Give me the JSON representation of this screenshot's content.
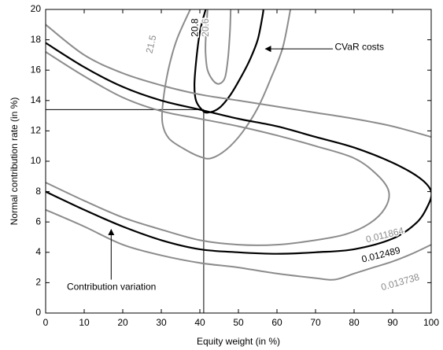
{
  "chart_data": {
    "type": "line",
    "title": "",
    "xlabel": "Equity weight (in %)",
    "ylabel": "Normal contribution rate (in %)",
    "xlim": [
      0,
      100
    ],
    "ylim": [
      0,
      20
    ],
    "xticks": [
      "0",
      "10",
      "20",
      "30",
      "40",
      "50",
      "60",
      "70",
      "80",
      "90",
      "100"
    ],
    "yticks": [
      "0",
      "2",
      "4",
      "6",
      "8",
      "10",
      "12",
      "14",
      "16",
      "18",
      "20"
    ],
    "grid": false,
    "colors": {
      "dark": "#000000",
      "gray": "#8c8c8c"
    },
    "series": [
      {
        "label": "20.8",
        "color": "dark",
        "segments": [
          [
            [
              41.5,
              20
            ],
            [
              40,
              18.5
            ],
            [
              39,
              16.5
            ],
            [
              38.6,
              15
            ],
            [
              39,
              14
            ],
            [
              40.5,
              13.4
            ],
            [
              42,
              13.2
            ],
            [
              45,
              13.5
            ],
            [
              48,
              14.4
            ],
            [
              51,
              15.7
            ],
            [
              53,
              16.7
            ],
            [
              55,
              18
            ],
            [
              56.2,
              19.5
            ],
            [
              56.5,
              20
            ]
          ]
        ]
      },
      {
        "label": "20.6",
        "color": "gray",
        "segments": [
          [
            [
              42,
              20
            ],
            [
              41.5,
              18
            ],
            [
              41.5,
              17
            ],
            [
              42,
              16
            ],
            [
              43.5,
              15.3
            ],
            [
              45,
              15.1
            ],
            [
              46.5,
              15.5
            ],
            [
              47.3,
              16.8
            ],
            [
              47.8,
              18.5
            ],
            [
              48,
              20
            ]
          ]
        ]
      },
      {
        "label": "21.5",
        "color": "gray",
        "segments": [
          [
            [
              37.5,
              20
            ],
            [
              34,
              18
            ],
            [
              31.8,
              16
            ],
            [
              30.5,
              14
            ],
            [
              30.3,
              12.5
            ],
            [
              32,
              11.5
            ],
            [
              36,
              10.8
            ],
            [
              40,
              10.3
            ],
            [
              43,
              10.2
            ],
            [
              47,
              10.8
            ],
            [
              51,
              11.9
            ],
            [
              55,
              13.5
            ],
            [
              58.5,
              15.5
            ],
            [
              61.5,
              17.5
            ],
            [
              63.5,
              20
            ]
          ]
        ]
      },
      {
        "label": "0.012489",
        "color": "dark",
        "segments": [
          [
            [
              0,
              17.8
            ],
            [
              10,
              16.2
            ],
            [
              20,
              14.9
            ],
            [
              30,
              14
            ],
            [
              40,
              13.4
            ],
            [
              50,
              12.8
            ],
            [
              60,
              12.3
            ],
            [
              70,
              11.6
            ],
            [
              80,
              10.9
            ],
            [
              90,
              9.9
            ],
            [
              97,
              8.9
            ],
            [
              100,
              8
            ],
            [
              99,
              7
            ],
            [
              96,
              5.9
            ],
            [
              90,
              4.9
            ],
            [
              80,
              4.2
            ],
            [
              70,
              4
            ],
            [
              60,
              3.9
            ],
            [
              50,
              4
            ],
            [
              40,
              4.2
            ],
            [
              30,
              4.8
            ],
            [
              20,
              5.7
            ],
            [
              10,
              6.8
            ],
            [
              0,
              8
            ]
          ]
        ]
      },
      {
        "label": "0.011864",
        "color": "gray",
        "segments": [
          [
            [
              0,
              17.2
            ],
            [
              10,
              15.6
            ],
            [
              20,
              14.2
            ],
            [
              30,
              13.3
            ],
            [
              40,
              12.8
            ],
            [
              50,
              12.3
            ],
            [
              60,
              11.7
            ],
            [
              70,
              11
            ],
            [
              80,
              10.2
            ],
            [
              86,
              9.1
            ],
            [
              89,
              8
            ],
            [
              88,
              6.9
            ],
            [
              84,
              5.9
            ],
            [
              78,
              5.2
            ],
            [
              70,
              4.8
            ],
            [
              60,
              4.5
            ],
            [
              50,
              4.5
            ],
            [
              40,
              4.8
            ],
            [
              30,
              5.5
            ],
            [
              20,
              6.3
            ],
            [
              10,
              7.4
            ],
            [
              0,
              8.6
            ]
          ]
        ]
      },
      {
        "label": "0.013738",
        "color": "gray",
        "segments": [
          [
            [
              0,
              19
            ],
            [
              10,
              17
            ],
            [
              20,
              15.8
            ],
            [
              30,
              15
            ],
            [
              40,
              14.4
            ],
            [
              50,
              14
            ],
            [
              60,
              13.6
            ],
            [
              70,
              13.2
            ],
            [
              80,
              12.8
            ],
            [
              90,
              12.3
            ],
            [
              100,
              11.6
            ]
          ],
          [
            [
              0,
              6.8
            ],
            [
              10,
              5.7
            ],
            [
              20,
              4.5
            ],
            [
              30,
              3.8
            ],
            [
              40,
              3.3
            ],
            [
              50,
              3
            ],
            [
              60,
              2.6
            ],
            [
              70,
              2.3
            ],
            [
              75,
              2.2
            ],
            [
              80,
              2.6
            ],
            [
              85,
              3
            ],
            [
              90,
              3.4
            ],
            [
              95,
              3.9
            ],
            [
              100,
              4.5
            ]
          ]
        ]
      }
    ],
    "contour_labels": [
      {
        "text": "20.8",
        "x": 38.8,
        "y": 18.8,
        "rotate": -90,
        "color": "dark"
      },
      {
        "text": "20.6",
        "x": 41.6,
        "y": 18.8,
        "rotate": -90,
        "color": "gray"
      },
      {
        "text": "21.5",
        "x": 27.5,
        "y": 17.7,
        "rotate": -77,
        "color": "gray"
      },
      {
        "text": "0.011864",
        "x": 88,
        "y": 5.1,
        "rotate": -14,
        "color": "gray"
      },
      {
        "text": "0.012489",
        "x": 87,
        "y": 3.8,
        "rotate": -14,
        "color": "dark"
      },
      {
        "text": "0.013738",
        "x": 92,
        "y": 2.0,
        "rotate": -16,
        "color": "gray"
      }
    ],
    "reference_lines": {
      "x": 41,
      "y": 13.4
    },
    "annotations": [
      {
        "text": "CVaR costs",
        "text_x": 75,
        "text_y": 17.5,
        "arrow_from": [
          74.5,
          17.4
        ],
        "arrow_to": [
          57,
          17.4
        ]
      },
      {
        "text": "Contribution variation",
        "text_x": 5.5,
        "text_y": 1.7,
        "arrow_from": [
          17,
          2.2
        ],
        "arrow_to": [
          17,
          5.5
        ]
      }
    ]
  }
}
